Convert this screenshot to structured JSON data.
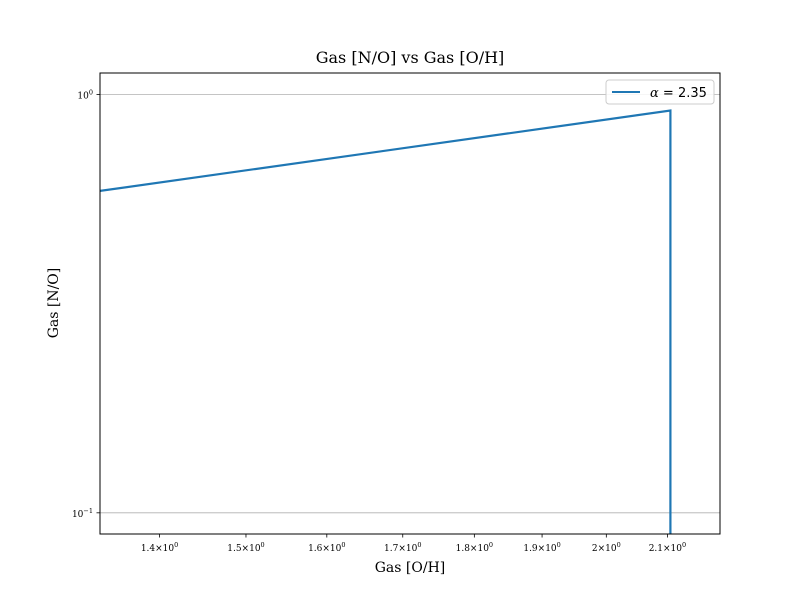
{
  "chart_data": {
    "type": "line",
    "title": "Gas [N/O] vs Gas [O/H]",
    "xlabel": "Gas [O/H]",
    "ylabel": "Gas [N/O]",
    "xscale": "log",
    "yscale": "log",
    "xlim": [
      1.335,
      2.19
    ],
    "ylim": [
      0.089,
      1.125
    ],
    "x_ticks": [
      {
        "value": 1.4,
        "mantissa": "1.4",
        "exp": "0"
      },
      {
        "value": 1.5,
        "mantissa": "1.5",
        "exp": "0"
      },
      {
        "value": 1.6,
        "mantissa": "1.6",
        "exp": "0"
      },
      {
        "value": 1.7,
        "mantissa": "1.7",
        "exp": "0"
      },
      {
        "value": 1.8,
        "mantissa": "1.8",
        "exp": "0"
      },
      {
        "value": 1.9,
        "mantissa": "1.9",
        "exp": "0"
      },
      {
        "value": 2.0,
        "mantissa": "2",
        "exp": "0"
      },
      {
        "value": 2.1,
        "mantissa": "2.1",
        "exp": "0"
      }
    ],
    "y_ticks": [
      {
        "value": 0.1,
        "base": "10",
        "exp": "−1"
      },
      {
        "value": 1.0,
        "base": "10",
        "exp": "0"
      }
    ],
    "grid": "y-major",
    "legend": {
      "placement": "top-right"
    },
    "series": [
      {
        "name": "α = 2.35",
        "label_symbol": "α",
        "label_rest": " = 2.35",
        "color": "#1f77b4",
        "x": [
          1.335,
          2.105,
          2.105
        ],
        "y": [
          0.588,
          0.915,
          0.085
        ]
      }
    ]
  }
}
